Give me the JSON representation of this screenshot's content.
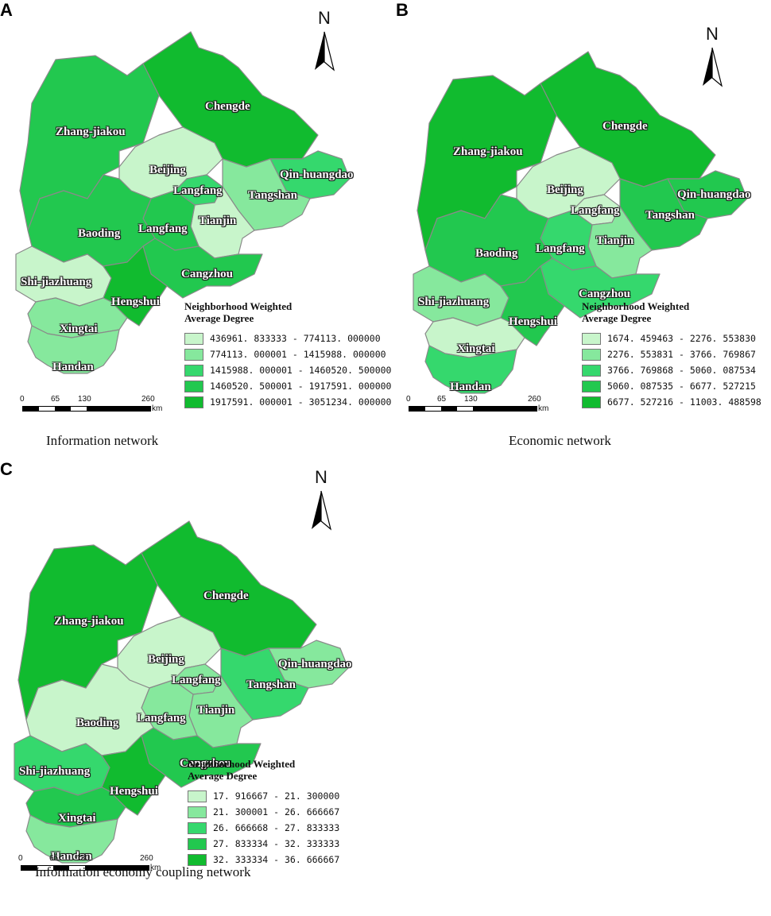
{
  "colors": {
    "class1": "#c8f5cb",
    "class2": "#86e89d",
    "class3": "#35d86d",
    "class4": "#22c84f",
    "class5": "#11bb2f"
  },
  "north_arrow": {
    "label": "N"
  },
  "scale_bar": {
    "ticks": [
      "0",
      "65",
      "130",
      "260"
    ],
    "unit": "km"
  },
  "legend_title_lines": [
    "Neighborhood Weighted",
    "Average Degree"
  ],
  "city_names": {
    "zhangjiakou": "Zhang-jiakou",
    "chengde": "Chengde",
    "beijing": "Beijing",
    "langfang_n": "Langfang",
    "langfang_s": "Langfang",
    "qinhuangdao": "Qin-huangdao",
    "tangshan": "Tangshan",
    "tianjin": "Tianjin",
    "baoding": "Baoding",
    "shijiazhuang": "Shi-jiazhuang",
    "cangzhou": "Cangzhou",
    "hengshui": "Hengshui",
    "xingtai": "Xingtai",
    "handan": "Handan"
  },
  "panels": [
    {
      "letter": "A",
      "caption": "Information network",
      "legend_ranges": [
        "436961. 833333  -  774113. 000000",
        "774113. 000001  -  1415988. 000000",
        "1415988. 000001  -  1460520. 500000",
        "1460520. 500001  -  1917591. 000000",
        "1917591. 000001  -  3051234. 000000"
      ],
      "region_class": {
        "zhangjiakou": 4,
        "chengde": 5,
        "beijing": 1,
        "langfang_n": 3,
        "langfang_s": 4,
        "qinhuangdao": 3,
        "tangshan": 2,
        "tianjin": 1,
        "baoding": 4,
        "shijiazhuang": 1,
        "cangzhou": 4,
        "hengshui": 5,
        "xingtai": 2,
        "handan": 2
      }
    },
    {
      "letter": "B",
      "caption": "Economic network",
      "legend_ranges": [
        "1674. 459463  -  2276. 553830",
        "2276. 553831  -  3766. 769867",
        "3766. 769868  -  5060. 087534",
        "5060. 087535  -  6677. 527215",
        "6677. 527216  -  11003. 488598"
      ],
      "region_class": {
        "zhangjiakou": 5,
        "chengde": 5,
        "beijing": 1,
        "langfang_n": 1,
        "langfang_s": 3,
        "qinhuangdao": 4,
        "tangshan": 4,
        "tianjin": 2,
        "baoding": 4,
        "shijiazhuang": 2,
        "cangzhou": 3,
        "hengshui": 4,
        "xingtai": 1,
        "handan": 3
      }
    },
    {
      "letter": "C",
      "caption": "Information economy coupling network",
      "legend_ranges": [
        "17. 916667  -  21. 300000",
        "21. 300001  -  26. 666667",
        "26. 666668  -  27. 833333",
        "27. 833334  -  32. 333333",
        "32. 333334  -  36. 666667"
      ],
      "region_class": {
        "zhangjiakou": 5,
        "chengde": 5,
        "beijing": 1,
        "langfang_n": 2,
        "langfang_s": 2,
        "qinhuangdao": 2,
        "tangshan": 3,
        "tianjin": 2,
        "baoding": 1,
        "shijiazhuang": 3,
        "cangzhou": 4,
        "hengshui": 5,
        "xingtai": 4,
        "handan": 2
      }
    }
  ]
}
